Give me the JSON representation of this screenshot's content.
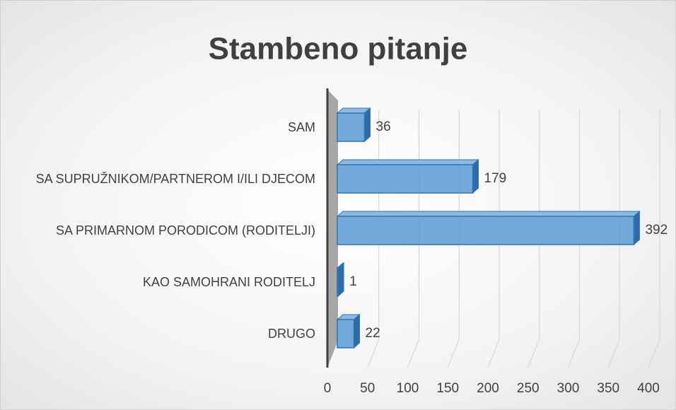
{
  "chart_data": {
    "type": "bar",
    "orientation": "horizontal",
    "title": "Stambeno pitanje",
    "categories": [
      "SAM",
      "SA SUPRUŽNIKOM/PARTNEROM I/ILI DJECOM",
      "SA PRIMARNOM PORODICOM (RODITELJI)",
      "KAO SAMOHRANI RODITELJ",
      "DRUGO"
    ],
    "values": [
      36,
      179,
      392,
      1,
      22
    ],
    "color": "#5b9bd5",
    "xlim": [
      0,
      400
    ],
    "xticks": [
      0,
      50,
      100,
      150,
      200,
      250,
      300,
      350,
      400
    ],
    "grid": true
  }
}
